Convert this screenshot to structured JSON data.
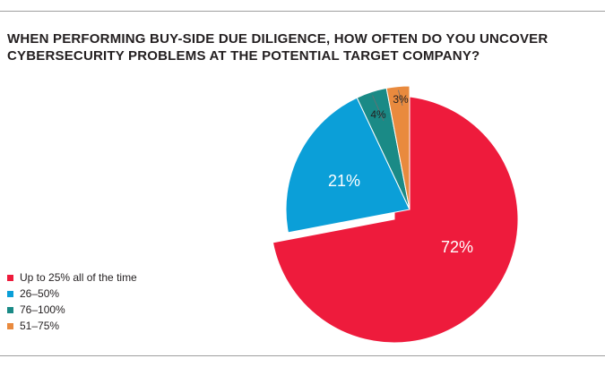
{
  "chart_data": {
    "type": "pie",
    "title_lines": [
      "WHEN PERFORMING BUY-SIDE DUE DILIGENCE, HOW OFTEN DO YOU UNCOVER",
      "CYBERSECURITY PROBLEMS AT THE POTENTIAL TARGET COMPANY?"
    ],
    "slices": [
      {
        "label": "Up to 25% all of the time",
        "value": 72,
        "value_label": "72%",
        "color": "#ee1b3c"
      },
      {
        "label": "26–50%",
        "value": 21,
        "value_label": "21%",
        "color": "#0b9fd8"
      },
      {
        "label": "76–100%",
        "value": 4,
        "value_label": "4%",
        "color": "#1a8a86"
      },
      {
        "label": "51–75%",
        "value": 3,
        "value_label": "3%",
        "color": "#e98a3e"
      }
    ],
    "legend_position": "bottom-left",
    "exploded_slices": [
      "Up to 25% all of the time"
    ]
  }
}
